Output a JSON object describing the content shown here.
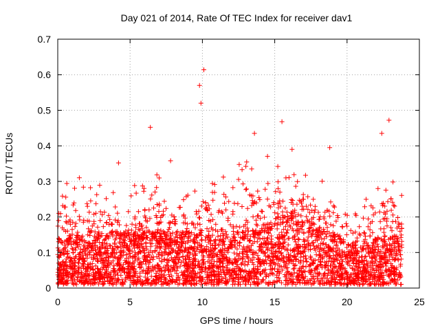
{
  "chart_data": {
    "type": "scatter",
    "title": "Day 021 of 2014, Rate Of TEC Index for receiver dav1",
    "xlabel": "GPS time / hours",
    "ylabel": "ROTI / TECUs",
    "xlim": [
      0,
      25
    ],
    "ylim": [
      0,
      0.7
    ],
    "xticks": [
      0,
      5,
      10,
      15,
      20,
      25
    ],
    "yticks": [
      0,
      0.1,
      0.2,
      0.3,
      0.4,
      0.5,
      0.6,
      0.7
    ],
    "xtick_labels": [
      "0",
      "5",
      "10",
      "15",
      "20",
      "25"
    ],
    "ytick_labels": [
      "0",
      "0.1",
      "0.2",
      "0.3",
      "0.4",
      "0.5",
      "0.6",
      "0.7"
    ],
    "grid": true,
    "marker": "+",
    "color": "#ff0000",
    "x_extent": [
      0,
      23.8
    ],
    "series": [
      {
        "name": "dav1",
        "envelope": {
          "hours": [
            0,
            1,
            2,
            3,
            4,
            5,
            6,
            7,
            8,
            9,
            10,
            11,
            12,
            13,
            14,
            15,
            16,
            17,
            18,
            19,
            20,
            21,
            22,
            23,
            23.8
          ],
          "baseline": [
            0.05,
            0.06,
            0.06,
            0.06,
            0.07,
            0.07,
            0.07,
            0.07,
            0.07,
            0.07,
            0.06,
            0.06,
            0.07,
            0.07,
            0.08,
            0.11,
            0.12,
            0.11,
            0.09,
            0.07,
            0.04,
            0.04,
            0.05,
            0.06,
            0.06
          ],
          "typical_upper": [
            0.25,
            0.22,
            0.24,
            0.22,
            0.2,
            0.22,
            0.22,
            0.24,
            0.22,
            0.2,
            0.24,
            0.22,
            0.25,
            0.28,
            0.28,
            0.28,
            0.26,
            0.25,
            0.25,
            0.2,
            0.16,
            0.18,
            0.22,
            0.26,
            0.2
          ]
        },
        "notable_points": [
          {
            "x": 10.1,
            "y": 0.614
          },
          {
            "x": 9.8,
            "y": 0.57
          },
          {
            "x": 9.9,
            "y": 0.52
          },
          {
            "x": 6.4,
            "y": 0.452
          },
          {
            "x": 15.5,
            "y": 0.468
          },
          {
            "x": 22.9,
            "y": 0.472
          },
          {
            "x": 13.6,
            "y": 0.435
          },
          {
            "x": 22.4,
            "y": 0.435
          },
          {
            "x": 18.8,
            "y": 0.395
          },
          {
            "x": 16.2,
            "y": 0.39
          },
          {
            "x": 4.2,
            "y": 0.352
          },
          {
            "x": 7.8,
            "y": 0.358
          }
        ]
      }
    ]
  }
}
